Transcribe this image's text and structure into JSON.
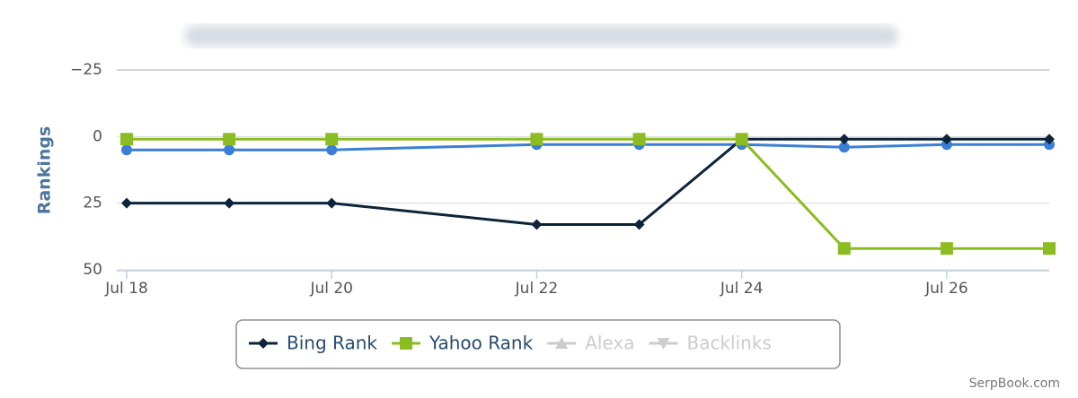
{
  "chart_data": {
    "type": "line",
    "y_axis_label": "Rankings",
    "credit": "SerpBook.com",
    "x": [
      18,
      19,
      20,
      22,
      23,
      24,
      25,
      26,
      27
    ],
    "xlim": [
      18,
      27
    ],
    "xticks": [
      {
        "value": 18,
        "label": "Jul 18"
      },
      {
        "value": 20,
        "label": "Jul 20"
      },
      {
        "value": 22,
        "label": "Jul 22"
      },
      {
        "value": 24,
        "label": "Jul 24"
      },
      {
        "value": 26,
        "label": "Jul 26"
      }
    ],
    "ylim": [
      -25,
      50
    ],
    "reversed": true,
    "yticks": [
      {
        "value": -25,
        "label": "−25"
      },
      0,
      25,
      50
    ],
    "grid": true,
    "series": [
      {
        "color": "#3a7fd5",
        "marker": "circle",
        "values": [
          5,
          5,
          5,
          3,
          3,
          3,
          4,
          3,
          3
        ]
      },
      {
        "name": "Bing Rank",
        "color": "#0d233a",
        "marker": "diamond",
        "values": [
          25,
          25,
          25,
          33,
          33,
          1,
          1,
          1,
          1
        ]
      },
      {
        "name": "Yahoo Rank",
        "color": "#8bbc21",
        "marker": "square",
        "values": [
          1,
          1,
          1,
          1,
          1,
          1,
          42,
          42,
          42
        ]
      },
      {
        "name": "Alexa",
        "color": "#cccccc",
        "marker": "triangle",
        "visible": false
      },
      {
        "name": "Backlinks",
        "color": "#cccccc",
        "marker": "triangle-down",
        "visible": false
      }
    ]
  }
}
